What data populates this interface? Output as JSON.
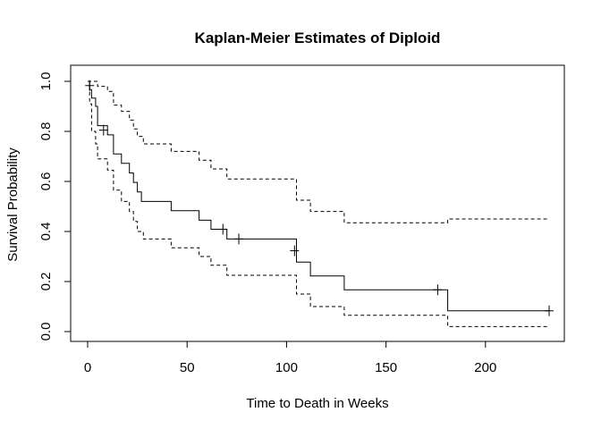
{
  "chart_data": {
    "type": "line",
    "title": "Kaplan-Meier Estimates of Diploid",
    "xlabel": "Time to Death in Weeks",
    "ylabel": "Survival Probability",
    "xlim": [
      0,
      232
    ],
    "ylim": [
      0,
      1
    ],
    "xticks": [
      0,
      50,
      100,
      150,
      200
    ],
    "yticks": [
      0.0,
      0.2,
      0.4,
      0.6,
      0.8,
      1.0
    ],
    "ytick_labels": [
      "0.0",
      "0.2",
      "0.4",
      "0.6",
      "0.8",
      "1.0"
    ],
    "grid": false,
    "legend": "none",
    "series": [
      {
        "role": "estimate",
        "style": "solid",
        "x": [
          0,
          1,
          2,
          4,
          5,
          10,
          13,
          17,
          21,
          23,
          25,
          27,
          28,
          30,
          38,
          42,
          56,
          62,
          70,
          104,
          105,
          112,
          129,
          181,
          232
        ],
        "y": [
          1.0,
          0.967,
          0.933,
          0.9,
          0.823,
          0.786,
          0.71,
          0.672,
          0.634,
          0.596,
          0.558,
          0.52,
          0.52,
          0.52,
          0.52,
          0.483,
          0.445,
          0.409,
          0.37,
          0.37,
          0.278,
          0.222,
          0.167,
          0.083,
          0.083
        ]
      },
      {
        "role": "upper confidence limit",
        "style": "dashed",
        "x": [
          0,
          4,
          5,
          10,
          13,
          17,
          21,
          23,
          25,
          28,
          30,
          42,
          56,
          62,
          70,
          104,
          105,
          112,
          129,
          181,
          232
        ],
        "y": [
          1.0,
          1.0,
          0.98,
          0.96,
          0.905,
          0.88,
          0.845,
          0.81,
          0.78,
          0.75,
          0.75,
          0.72,
          0.685,
          0.65,
          0.61,
          0.61,
          0.525,
          0.48,
          0.435,
          0.45,
          0.45
        ]
      },
      {
        "role": "lower confidence limit",
        "style": "dashed",
        "x": [
          0,
          1,
          2,
          4,
          5,
          10,
          13,
          17,
          21,
          23,
          25,
          28,
          30,
          42,
          56,
          62,
          70,
          104,
          105,
          112,
          129,
          181,
          232
        ],
        "y": [
          1.0,
          0.91,
          0.8,
          0.75,
          0.69,
          0.645,
          0.565,
          0.52,
          0.48,
          0.44,
          0.4,
          0.37,
          0.37,
          0.335,
          0.3,
          0.265,
          0.225,
          0.225,
          0.15,
          0.1,
          0.065,
          0.02,
          0.02
        ]
      }
    ],
    "censored": [
      {
        "x": 1,
        "y": 0.983
      },
      {
        "x": 8,
        "y": 0.805
      },
      {
        "x": 68,
        "y": 0.409
      },
      {
        "x": 76,
        "y": 0.37
      },
      {
        "x": 104,
        "y": 0.323
      },
      {
        "x": 176,
        "y": 0.167
      },
      {
        "x": 232,
        "y": 0.083
      }
    ]
  }
}
